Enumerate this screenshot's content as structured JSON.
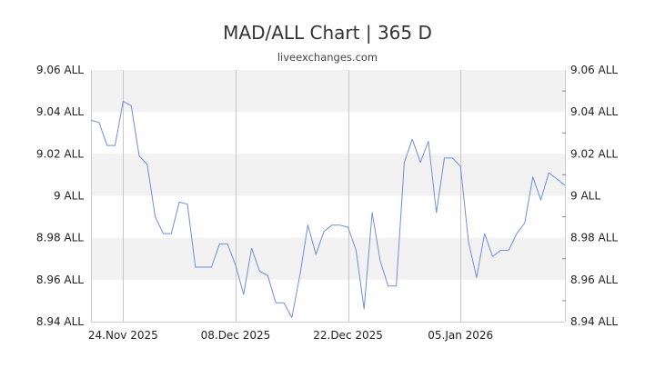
{
  "header": {
    "title": "MAD/ALL Chart | 365 D",
    "subtitle": "liveexchanges.com"
  },
  "chart_data": {
    "type": "line",
    "title": "MAD/ALL Chart | 365 D",
    "subtitle": "liveexchanges.com",
    "xlabel": "",
    "ylabel": "",
    "ylim": [
      8.94,
      9.06
    ],
    "y_ticks": [
      9.06,
      9.04,
      9.02,
      9.0,
      8.98,
      8.96,
      8.94
    ],
    "y_tick_labels": [
      "9.06 ALL",
      "9.04 ALL",
      "9.02 ALL",
      "9 ALL",
      "8.98 ALL",
      "8.96 ALL",
      "8.94 ALL"
    ],
    "x_range": [
      "2025-11-20",
      "2026-01-18"
    ],
    "x_ticks": [
      "2025-11-24",
      "2025-12-08",
      "2025-12-22",
      "2026-01-05"
    ],
    "x_tick_labels": [
      "24.Nov 2025",
      "08.Dec 2025",
      "22.Dec 2025",
      "05.Jan 2026"
    ],
    "grid": true,
    "line_color": "#6f8fd8",
    "band_color": "#f2f2f2",
    "series": [
      {
        "x": [
          "2025-11-20",
          "2025-11-21",
          "2025-11-22",
          "2025-11-23",
          "2025-11-24",
          "2025-11-25",
          "2025-11-26",
          "2025-11-27",
          "2025-11-28",
          "2025-11-29",
          "2025-11-30",
          "2025-12-01",
          "2025-12-02",
          "2025-12-03",
          "2025-12-04",
          "2025-12-05",
          "2025-12-06",
          "2025-12-07",
          "2025-12-08",
          "2025-12-09",
          "2025-12-10",
          "2025-12-11",
          "2025-12-12",
          "2025-12-13",
          "2025-12-14",
          "2025-12-15",
          "2025-12-16",
          "2025-12-17",
          "2025-12-18",
          "2025-12-19",
          "2025-12-20",
          "2025-12-21",
          "2025-12-22",
          "2025-12-23",
          "2025-12-24",
          "2025-12-25",
          "2025-12-26",
          "2025-12-27",
          "2025-12-28",
          "2025-12-29",
          "2025-12-30",
          "2025-12-31",
          "2026-01-01",
          "2026-01-02",
          "2026-01-03",
          "2026-01-04",
          "2026-01-05",
          "2026-01-06",
          "2026-01-07",
          "2026-01-08",
          "2026-01-09",
          "2026-01-10",
          "2026-01-11",
          "2026-01-12",
          "2026-01-13",
          "2026-01-14",
          "2026-01-15",
          "2026-01-16",
          "2026-01-17",
          "2026-01-18"
        ],
        "values": [
          9.036,
          9.035,
          9.024,
          9.024,
          9.045,
          9.043,
          9.019,
          9.015,
          8.99,
          8.982,
          8.982,
          8.997,
          8.996,
          8.966,
          8.966,
          8.966,
          8.977,
          8.977,
          8.967,
          8.953,
          8.975,
          8.964,
          8.962,
          8.949,
          8.949,
          8.942,
          8.962,
          8.986,
          8.972,
          8.983,
          8.986,
          8.986,
          8.985,
          8.974,
          8.946,
          8.992,
          8.969,
          8.957,
          8.957,
          9.016,
          9.027,
          9.016,
          9.026,
          8.992,
          9.018,
          9.018,
          9.014,
          8.978,
          8.961,
          8.982,
          8.971,
          8.974,
          8.974,
          8.982,
          8.987,
          9.009,
          8.998,
          9.011,
          9.008,
          9.005
        ]
      }
    ]
  }
}
